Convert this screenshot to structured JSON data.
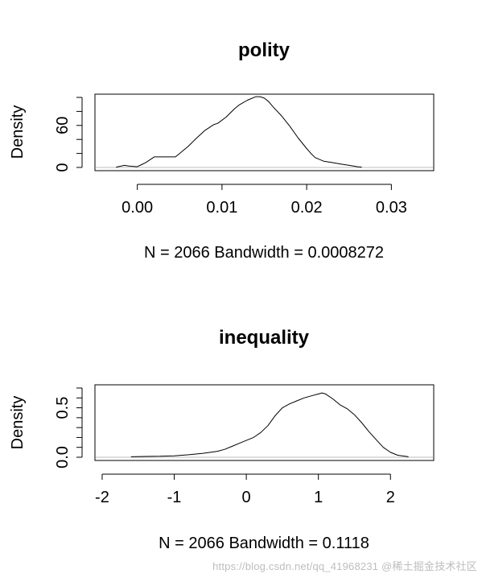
{
  "watermark": "https://blog.csdn.net/qq_41968231 @稀土掘金技术社区",
  "colors": {
    "background": "#ffffff",
    "line": "#000000",
    "baseline": "#bebebe",
    "axis": "#000000"
  },
  "chart_data": [
    {
      "type": "line",
      "title": "polity",
      "xlabel": "N = 2066   Bandwidth = 0.0008272",
      "ylabel": "Density",
      "xlim": [
        -0.005,
        0.035
      ],
      "ylim": [
        0,
        100
      ],
      "x_ticks": [
        0.0,
        0.01,
        0.02,
        0.03
      ],
      "x_tick_labels": [
        "0.00",
        "0.01",
        "0.02",
        "0.03"
      ],
      "y_ticks": [
        0,
        60
      ],
      "y_tick_labels": [
        "0",
        "60"
      ],
      "y_minor_ticks": [
        20,
        40,
        80,
        100
      ],
      "baseline": 0,
      "grid": false,
      "series": [
        {
          "x": [
            -0.0025,
            -0.0015,
            -0.001,
            0.0,
            0.0005,
            0.001,
            0.0015,
            0.002,
            0.0025,
            0.003,
            0.0035,
            0.004,
            0.0045,
            0.005,
            0.0055,
            0.006,
            0.007,
            0.008,
            0.009,
            0.0095,
            0.0105,
            0.0115,
            0.012,
            0.013,
            0.014,
            0.0145,
            0.015,
            0.0155,
            0.016,
            0.017,
            0.018,
            0.019,
            0.02,
            0.0205,
            0.021,
            0.022,
            0.023,
            0.024,
            0.025,
            0.026,
            0.0265
          ],
          "y": [
            0.5,
            3,
            2,
            1,
            4,
            7,
            11,
            15,
            15,
            15,
            15,
            15,
            15,
            20,
            25,
            30,
            42,
            53,
            61,
            63,
            72,
            84,
            89,
            96,
            101,
            101,
            99,
            94,
            87,
            74,
            59,
            42,
            27,
            20,
            14,
            9,
            7,
            5,
            3,
            1,
            0.5
          ]
        }
      ]
    },
    {
      "type": "line",
      "title": "inequality",
      "xlabel": "N = 2066   Bandwidth = 0.1118",
      "ylabel": "Density",
      "xlim": [
        -2.1,
        2.6
      ],
      "ylim": [
        0,
        0.7
      ],
      "x_ticks": [
        -2,
        -1,
        0,
        1,
        2
      ],
      "x_tick_labels": [
        "-2",
        "-1",
        "0",
        "1",
        "2"
      ],
      "y_ticks": [
        0.0,
        0.5
      ],
      "y_tick_labels": [
        "0.0",
        "0.5"
      ],
      "y_minor_ticks": [
        0.1,
        0.2,
        0.3,
        0.4,
        0.6,
        0.7
      ],
      "baseline": 0,
      "grid": false,
      "series": [
        {
          "x": [
            -1.6,
            -1.4,
            -1.2,
            -1.0,
            -0.8,
            -0.6,
            -0.5,
            -0.4,
            -0.3,
            -0.2,
            -0.1,
            0.0,
            0.1,
            0.2,
            0.3,
            0.4,
            0.5,
            0.6,
            0.7,
            0.8,
            0.9,
            1.0,
            1.05,
            1.1,
            1.2,
            1.3,
            1.4,
            1.5,
            1.6,
            1.7,
            1.8,
            1.9,
            2.0,
            2.1,
            2.25
          ],
          "y": [
            0.005,
            0.008,
            0.01,
            0.015,
            0.025,
            0.04,
            0.05,
            0.06,
            0.08,
            0.11,
            0.14,
            0.17,
            0.2,
            0.25,
            0.32,
            0.42,
            0.5,
            0.54,
            0.57,
            0.6,
            0.62,
            0.64,
            0.65,
            0.64,
            0.59,
            0.53,
            0.49,
            0.43,
            0.35,
            0.26,
            0.18,
            0.1,
            0.05,
            0.02,
            0.005
          ]
        }
      ]
    }
  ]
}
